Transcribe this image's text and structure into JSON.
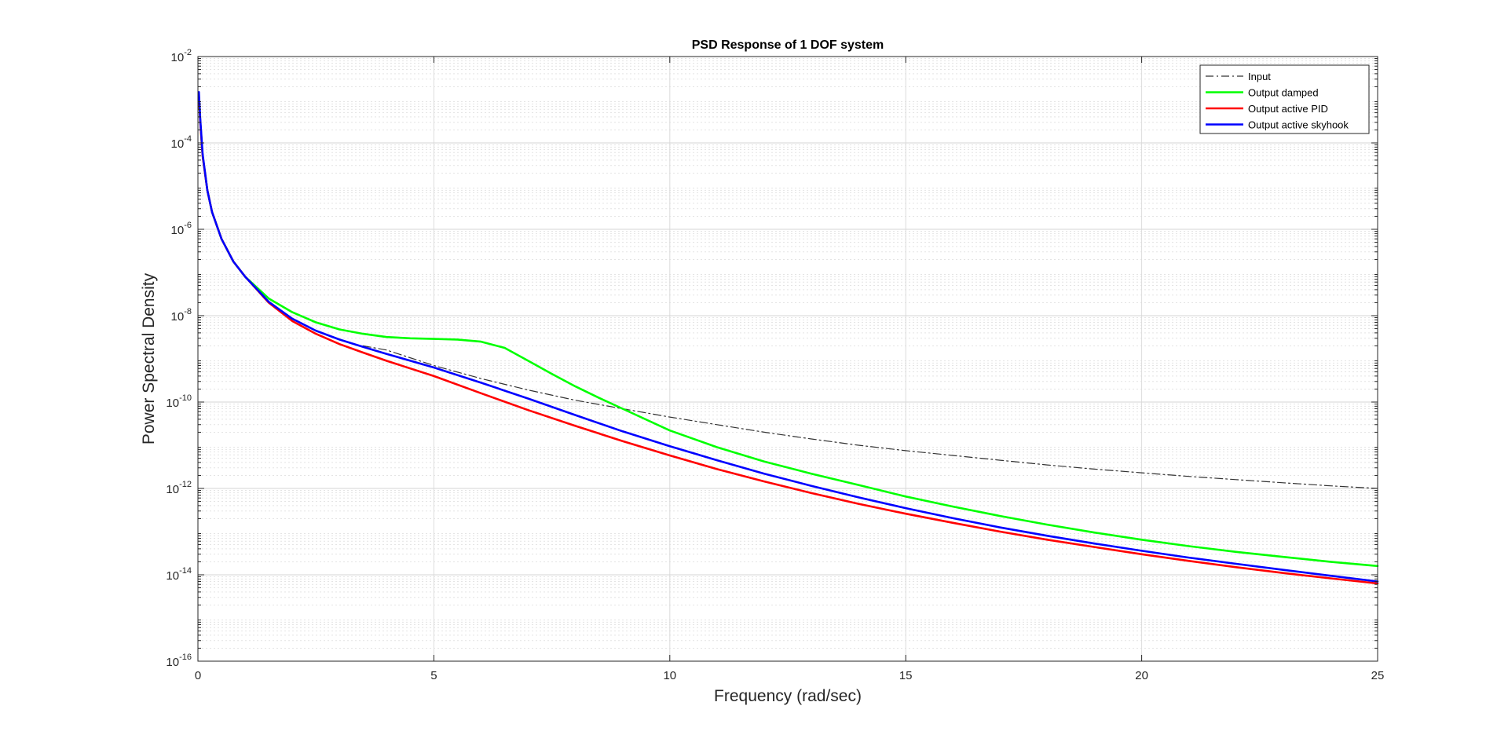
{
  "chart_data": {
    "type": "line",
    "title": "PSD Response of 1 DOF system",
    "xlabel": "Frequency (rad/sec)",
    "ylabel": "Power Spectral Density",
    "xlim": [
      0,
      25
    ],
    "ylim": [
      1e-16,
      0.01
    ],
    "yscale": "log",
    "grid": true,
    "minor_grid": true,
    "legend_position": "top-right",
    "x_ticks": [
      {
        "value": 0,
        "label": "0"
      },
      {
        "value": 5,
        "label": "5"
      },
      {
        "value": 10,
        "label": "10"
      },
      {
        "value": 15,
        "label": "15"
      },
      {
        "value": 20,
        "label": "20"
      },
      {
        "value": 25,
        "label": "25"
      }
    ],
    "y_ticks": [
      {
        "value": 1e-16,
        "base": "10",
        "exponent": "-16"
      },
      {
        "value": 1e-14,
        "base": "10",
        "exponent": "-14"
      },
      {
        "value": 1e-12,
        "base": "10",
        "exponent": "-12"
      },
      {
        "value": 1e-10,
        "base": "10",
        "exponent": "-10"
      },
      {
        "value": 1e-08,
        "base": "10",
        "exponent": "-8"
      },
      {
        "value": 1e-06,
        "base": "10",
        "exponent": "-6"
      },
      {
        "value": 0.0001,
        "base": "10",
        "exponent": "-4"
      },
      {
        "value": 0.01,
        "base": "10",
        "exponent": "-2"
      }
    ],
    "series": [
      {
        "name": "Input",
        "color": "#333333",
        "style": "dash-dot",
        "x": [
          3.5,
          4,
          5,
          6,
          7,
          8,
          9,
          10,
          11,
          12,
          13,
          14,
          15,
          16,
          17,
          18,
          19,
          20,
          21,
          22,
          23,
          24,
          25
        ],
        "y": [
          2e-09,
          1.6e-09,
          7e-10,
          3.5e-10,
          1.9e-10,
          1.1e-10,
          7e-11,
          4.5e-11,
          3e-11,
          2e-11,
          1.4e-11,
          1e-11,
          7.5e-12,
          5.8e-12,
          4.5e-12,
          3.5e-12,
          2.8e-12,
          2.3e-12,
          1.9e-12,
          1.6e-12,
          1.35e-12,
          1.15e-12,
          1e-12
        ]
      },
      {
        "name": "Output damped",
        "color": "#00ff00",
        "style": "solid",
        "x": [
          0.02,
          0.05,
          0.1,
          0.2,
          0.3,
          0.5,
          0.75,
          1,
          1.5,
          2,
          2.5,
          3,
          3.5,
          4,
          4.5,
          5,
          5.5,
          6,
          6.5,
          7,
          7.5,
          8,
          8.5,
          9,
          10,
          11,
          12,
          13,
          14,
          15,
          16,
          17,
          18,
          19,
          20,
          21,
          22,
          23,
          24,
          25
        ],
        "y": [
          0.0012,
          0.0003,
          5e-05,
          8e-06,
          2.5e-06,
          6e-07,
          1.8e-07,
          8e-08,
          2.5e-08,
          1.2e-08,
          7e-09,
          4.8e-09,
          3.8e-09,
          3.2e-09,
          3e-09,
          2.9e-09,
          2.8e-09,
          2.5e-09,
          1.8e-09,
          9e-10,
          4.5e-10,
          2.3e-10,
          1.25e-10,
          7e-11,
          2.2e-11,
          9e-12,
          4.2e-12,
          2.2e-12,
          1.2e-12,
          6.5e-13,
          3.8e-13,
          2.3e-13,
          1.45e-13,
          9.5e-14,
          6.5e-14,
          4.6e-14,
          3.4e-14,
          2.6e-14,
          2e-14,
          1.6e-14
        ]
      },
      {
        "name": "Output active PID",
        "color": "#ff0000",
        "style": "solid",
        "x": [
          0.02,
          0.05,
          0.1,
          0.2,
          0.3,
          0.5,
          0.75,
          1,
          1.5,
          2,
          2.5,
          3,
          3.5,
          4,
          5,
          6,
          7,
          8,
          9,
          10,
          11,
          12,
          13,
          14,
          15,
          16,
          17,
          18,
          19,
          20,
          21,
          22,
          23,
          24,
          25
        ],
        "y": [
          0.0012,
          0.0003,
          5e-05,
          8e-06,
          2.5e-06,
          6e-07,
          1.8e-07,
          8e-08,
          2e-08,
          7.5e-09,
          3.8e-09,
          2.2e-09,
          1.4e-09,
          9e-10,
          4e-10,
          1.6e-10,
          6.5e-11,
          2.8e-11,
          1.25e-11,
          5.8e-12,
          2.8e-12,
          1.45e-12,
          7.8e-13,
          4.4e-13,
          2.6e-13,
          1.6e-13,
          1e-13,
          6.5e-14,
          4.4e-14,
          3e-14,
          2.1e-14,
          1.5e-14,
          1.1e-14,
          8.3e-15,
          6.3e-15
        ]
      },
      {
        "name": "Output active skyhook",
        "color": "#0000ff",
        "style": "solid",
        "x": [
          0.02,
          0.05,
          0.1,
          0.2,
          0.3,
          0.5,
          0.75,
          1,
          1.5,
          2,
          2.5,
          3,
          3.5,
          4,
          5,
          6,
          7,
          8,
          9,
          10,
          11,
          12,
          13,
          14,
          15,
          16,
          17,
          18,
          19,
          20,
          21,
          22,
          23,
          24,
          25
        ],
        "y": [
          0.0015,
          0.00035,
          5.5e-05,
          8e-06,
          2.5e-06,
          6e-07,
          1.8e-07,
          8e-08,
          2.1e-08,
          8.5e-09,
          4.5e-09,
          2.8e-09,
          1.9e-09,
          1.3e-09,
          6.3e-10,
          2.8e-10,
          1.2e-10,
          5e-11,
          2.1e-11,
          9.5e-12,
          4.5e-12,
          2.2e-12,
          1.15e-12,
          6.2e-13,
          3.5e-13,
          2.05e-13,
          1.25e-13,
          8e-14,
          5.3e-14,
          3.6e-14,
          2.5e-14,
          1.8e-14,
          1.3e-14,
          9.5e-15,
          7e-15
        ]
      }
    ]
  }
}
